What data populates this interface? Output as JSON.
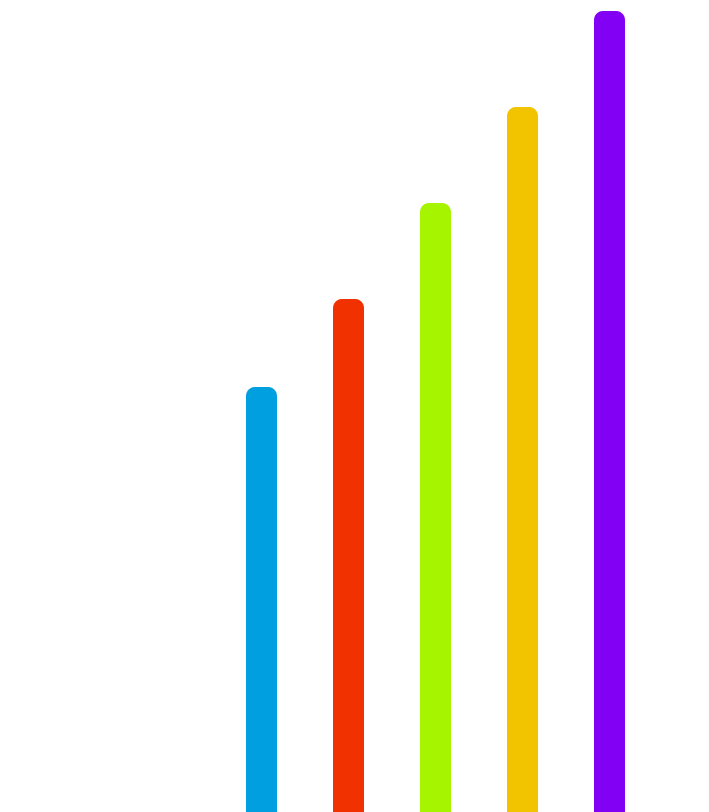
{
  "bars": [
    {
      "name": "bar-1",
      "color": "#009FE0",
      "level": 0.53
    },
    {
      "name": "bar-2",
      "color": "#F23100",
      "level": 0.64
    },
    {
      "name": "bar-3",
      "color": "#A6F400",
      "level": 0.76
    },
    {
      "name": "bar-4",
      "color": "#F2C400",
      "level": 0.88
    },
    {
      "name": "bar-5",
      "color": "#8200F4",
      "level": 1.0
    }
  ]
}
